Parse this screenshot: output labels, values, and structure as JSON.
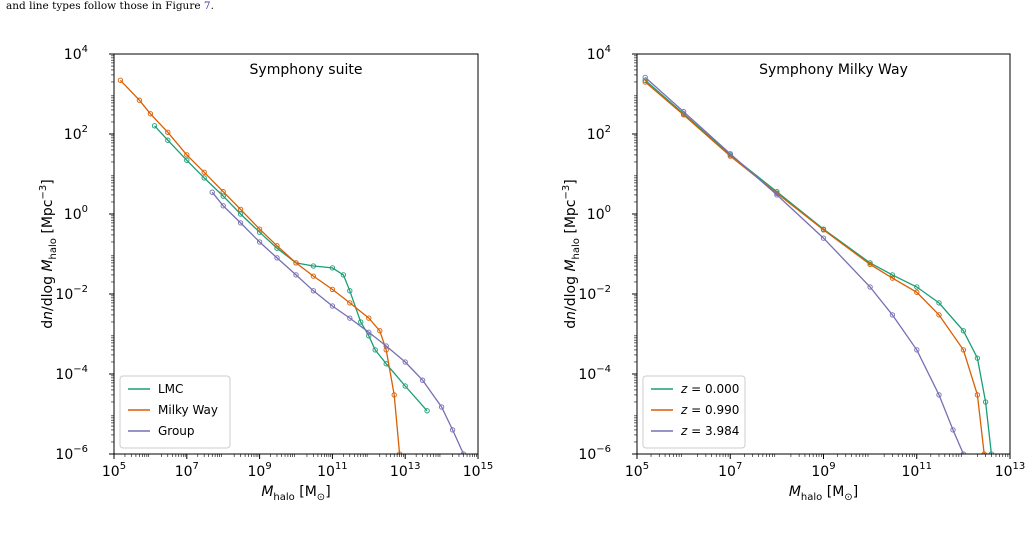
{
  "caption": {
    "text": "and line types follow those in Figure ",
    "ref": "7",
    "end": "."
  },
  "colors": {
    "green": "#1b9e77",
    "orange": "#d95f02",
    "purple": "#7570b3"
  },
  "chart_data": [
    {
      "type": "line",
      "title": "Symphony suite",
      "xlabel": "M_halo [M☉]",
      "ylabel": "dn/dlog M_halo [Mpc⁻³]",
      "xscale": "log",
      "yscale": "log",
      "xlim": [
        100000.0,
        1000000000000000.0
      ],
      "ylim": [
        1e-06,
        10000.0
      ],
      "xticks": [
        "10^5",
        "10^7",
        "10^9",
        "10^11",
        "10^13",
        "10^15"
      ],
      "yticks": [
        "10^-6",
        "10^-4",
        "10^-2",
        "10^0",
        "10^2",
        "10^4"
      ],
      "legend_position": "bottom-left",
      "series": [
        {
          "name": "LMC",
          "color": "#1b9e77",
          "x": [
            1300000.0,
            3000000.0,
            10000000.0,
            30000000.0,
            100000000.0,
            300000000.0,
            1000000000.0,
            3000000000.0,
            10000000000.0,
            30000000000.0,
            100000000000.0,
            200000000000.0,
            300000000000.0,
            600000000000.0,
            1000000000000.0,
            1500000000000.0,
            3000000000000.0,
            10000000000000.0,
            40000000000000.0
          ],
          "y": [
            160,
            70,
            22,
            8,
            2.8,
            1.0,
            0.35,
            0.14,
            0.06,
            0.05,
            0.045,
            0.03,
            0.012,
            0.002,
            0.0009,
            0.0004,
            0.00018,
            5e-05,
            1.2e-05
          ]
        },
        {
          "name": "Milky Way",
          "color": "#d95f02",
          "x": [
            150000.0,
            500000.0,
            1000000.0,
            3000000.0,
            10000000.0,
            30000000.0,
            100000000.0,
            300000000.0,
            1000000000.0,
            3000000000.0,
            10000000000.0,
            30000000000.0,
            100000000000.0,
            300000000000.0,
            1000000000000.0,
            2000000000000.0,
            3000000000000.0,
            5000000000000.0,
            7000000000000.0
          ],
          "y": [
            2200,
            700,
            320,
            110,
            30,
            11,
            3.6,
            1.3,
            0.42,
            0.16,
            0.06,
            0.028,
            0.013,
            0.006,
            0.0025,
            0.0012,
            0.0004,
            3e-05,
            1e-06
          ]
        },
        {
          "name": "Group",
          "color": "#7570b3",
          "x": [
            50000000.0,
            100000000.0,
            300000000.0,
            1000000000.0,
            3000000000.0,
            10000000000.0,
            30000000000.0,
            100000000000.0,
            300000000000.0,
            1000000000000.0,
            3000000000000.0,
            10000000000000.0,
            30000000000000.0,
            100000000000000.0,
            200000000000000.0,
            400000000000000.0
          ],
          "y": [
            3.5,
            1.6,
            0.6,
            0.2,
            0.08,
            0.03,
            0.012,
            0.005,
            0.0025,
            0.0011,
            0.0005,
            0.0002,
            7e-05,
            1.5e-05,
            4e-06,
            1e-06
          ]
        }
      ]
    },
    {
      "type": "line",
      "title": "Symphony Milky Way",
      "xlabel": "M_halo [M☉]",
      "ylabel": "dn/dlog M_halo [Mpc⁻³]",
      "xscale": "log",
      "yscale": "log",
      "xlim": [
        100000.0,
        10000000000000.0
      ],
      "ylim": [
        1e-06,
        10000.0
      ],
      "xticks": [
        "10^5",
        "10^7",
        "10^9",
        "10^11",
        "10^13"
      ],
      "yticks": [
        "10^-6",
        "10^-4",
        "10^-2",
        "10^0",
        "10^2",
        "10^4"
      ],
      "legend_position": "bottom-left",
      "series": [
        {
          "name": "z = 0.000",
          "color": "#1b9e77",
          "x": [
            150000.0,
            1000000.0,
            10000000.0,
            100000000.0,
            1000000000.0,
            10000000000.0,
            30000000000.0,
            100000000000.0,
            300000000000.0,
            1000000000000.0,
            2000000000000.0,
            3000000000000.0,
            4000000000000.0
          ],
          "y": [
            2200,
            320,
            30,
            3.6,
            0.42,
            0.06,
            0.03,
            0.015,
            0.006,
            0.0012,
            0.00025,
            2e-05,
            1e-06
          ]
        },
        {
          "name": "z = 0.990",
          "color": "#d95f02",
          "x": [
            150000.0,
            1000000.0,
            10000000.0,
            100000000.0,
            1000000000.0,
            10000000000.0,
            30000000000.0,
            100000000000.0,
            300000000000.0,
            1000000000000.0,
            2000000000000.0,
            2800000000000.0
          ],
          "y": [
            2000,
            300,
            28,
            3.3,
            0.4,
            0.055,
            0.025,
            0.011,
            0.003,
            0.0004,
            3e-05,
            1e-06
          ]
        },
        {
          "name": "z = 3.984",
          "color": "#7570b3",
          "x": [
            150000.0,
            1000000.0,
            10000000.0,
            100000000.0,
            1000000000.0,
            10000000000.0,
            30000000000.0,
            100000000000.0,
            300000000000.0,
            600000000000.0,
            1000000000000.0
          ],
          "y": [
            2600,
            360,
            32,
            3.0,
            0.25,
            0.015,
            0.003,
            0.0004,
            3e-05,
            4e-06,
            1e-06
          ]
        }
      ]
    }
  ]
}
